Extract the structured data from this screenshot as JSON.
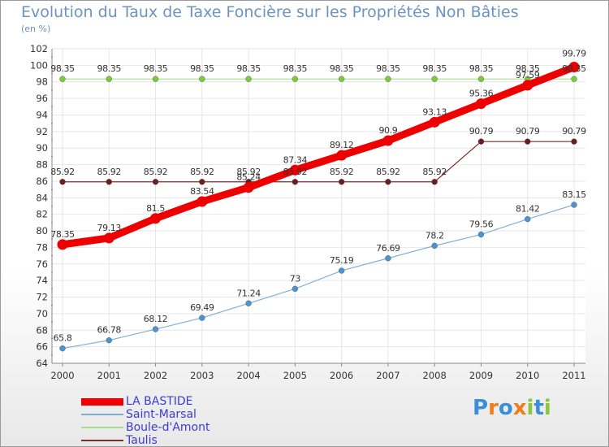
{
  "chart_data": {
    "type": "line",
    "title": "Evolution du Taux de Taxe Foncière sur les Propriétés Non Bâties",
    "ylabel": "(en %)",
    "xlabel": "",
    "ylim": [
      64,
      102
    ],
    "yticks": [
      64,
      66,
      68,
      70,
      72,
      74,
      76,
      78,
      80,
      82,
      84,
      86,
      88,
      90,
      92,
      94,
      96,
      98,
      100,
      102
    ],
    "categories": [
      "2000",
      "2001",
      "2002",
      "2003",
      "2004",
      "2005",
      "2006",
      "2007",
      "2008",
      "2009",
      "2010",
      "2011"
    ],
    "series": [
      {
        "name": "LA BASTIDE",
        "color": "#ee0000",
        "point_color": "#ee0000",
        "values": [
          78.35,
          79.13,
          81.5,
          83.54,
          85.24,
          87.34,
          89.12,
          90.9,
          93.13,
          95.36,
          97.59,
          99.79
        ],
        "labels": [
          "78.35",
          "79.13",
          "81.5",
          "83.54",
          "85.24",
          "87.34",
          "89.12",
          "90.9",
          "93.13",
          "95.36",
          "97.59",
          "99.79"
        ]
      },
      {
        "name": "Saint-Marsal",
        "color": "#7fb0d8",
        "point_color": "#4f93cc",
        "values": [
          65.8,
          66.78,
          68.12,
          69.49,
          71.24,
          73,
          75.19,
          76.69,
          78.2,
          79.56,
          81.42,
          83.15
        ],
        "labels": [
          "65.8",
          "66.78",
          "68.12",
          "69.49",
          "71.24",
          "73",
          "75.19",
          "76.69",
          "78.2",
          "79.56",
          "81.42",
          "83.15"
        ]
      },
      {
        "name": "Boule-d'Amont",
        "color": "#a6e08a",
        "point_color": "#7acc3a",
        "values": [
          98.35,
          98.35,
          98.35,
          98.35,
          98.35,
          98.35,
          98.35,
          98.35,
          98.35,
          98.35,
          98.35,
          98.35
        ],
        "labels": [
          "98.35",
          "98.35",
          "98.35",
          "98.35",
          "98.35",
          "98.35",
          "98.35",
          "98.35",
          "98.35",
          "98.35",
          "98.35",
          "98.35"
        ]
      },
      {
        "name": "Taulis",
        "color": "#7a3030",
        "point_color": "#6a1e1e",
        "values": [
          85.92,
          85.92,
          85.92,
          85.92,
          85.92,
          85.92,
          85.92,
          85.92,
          85.92,
          90.79,
          90.79,
          90.79
        ],
        "labels": [
          "85.92",
          "85.92",
          "85.92",
          "85.92",
          "85.92",
          "85.92",
          "85.92",
          "85.92",
          "85.92",
          "90.79",
          "90.79",
          "90.79"
        ]
      }
    ],
    "legend_position": "bottom-left"
  },
  "logo": {
    "text_parts": [
      "P",
      "r",
      "o",
      "x",
      "i",
      "t",
      "i"
    ],
    "colors": [
      "#3a8fd8",
      "#f07d1a",
      "#3a8fd8",
      "#f07d1a",
      "#8cc63f",
      "#3a8fd8",
      "#8cc63f"
    ]
  }
}
